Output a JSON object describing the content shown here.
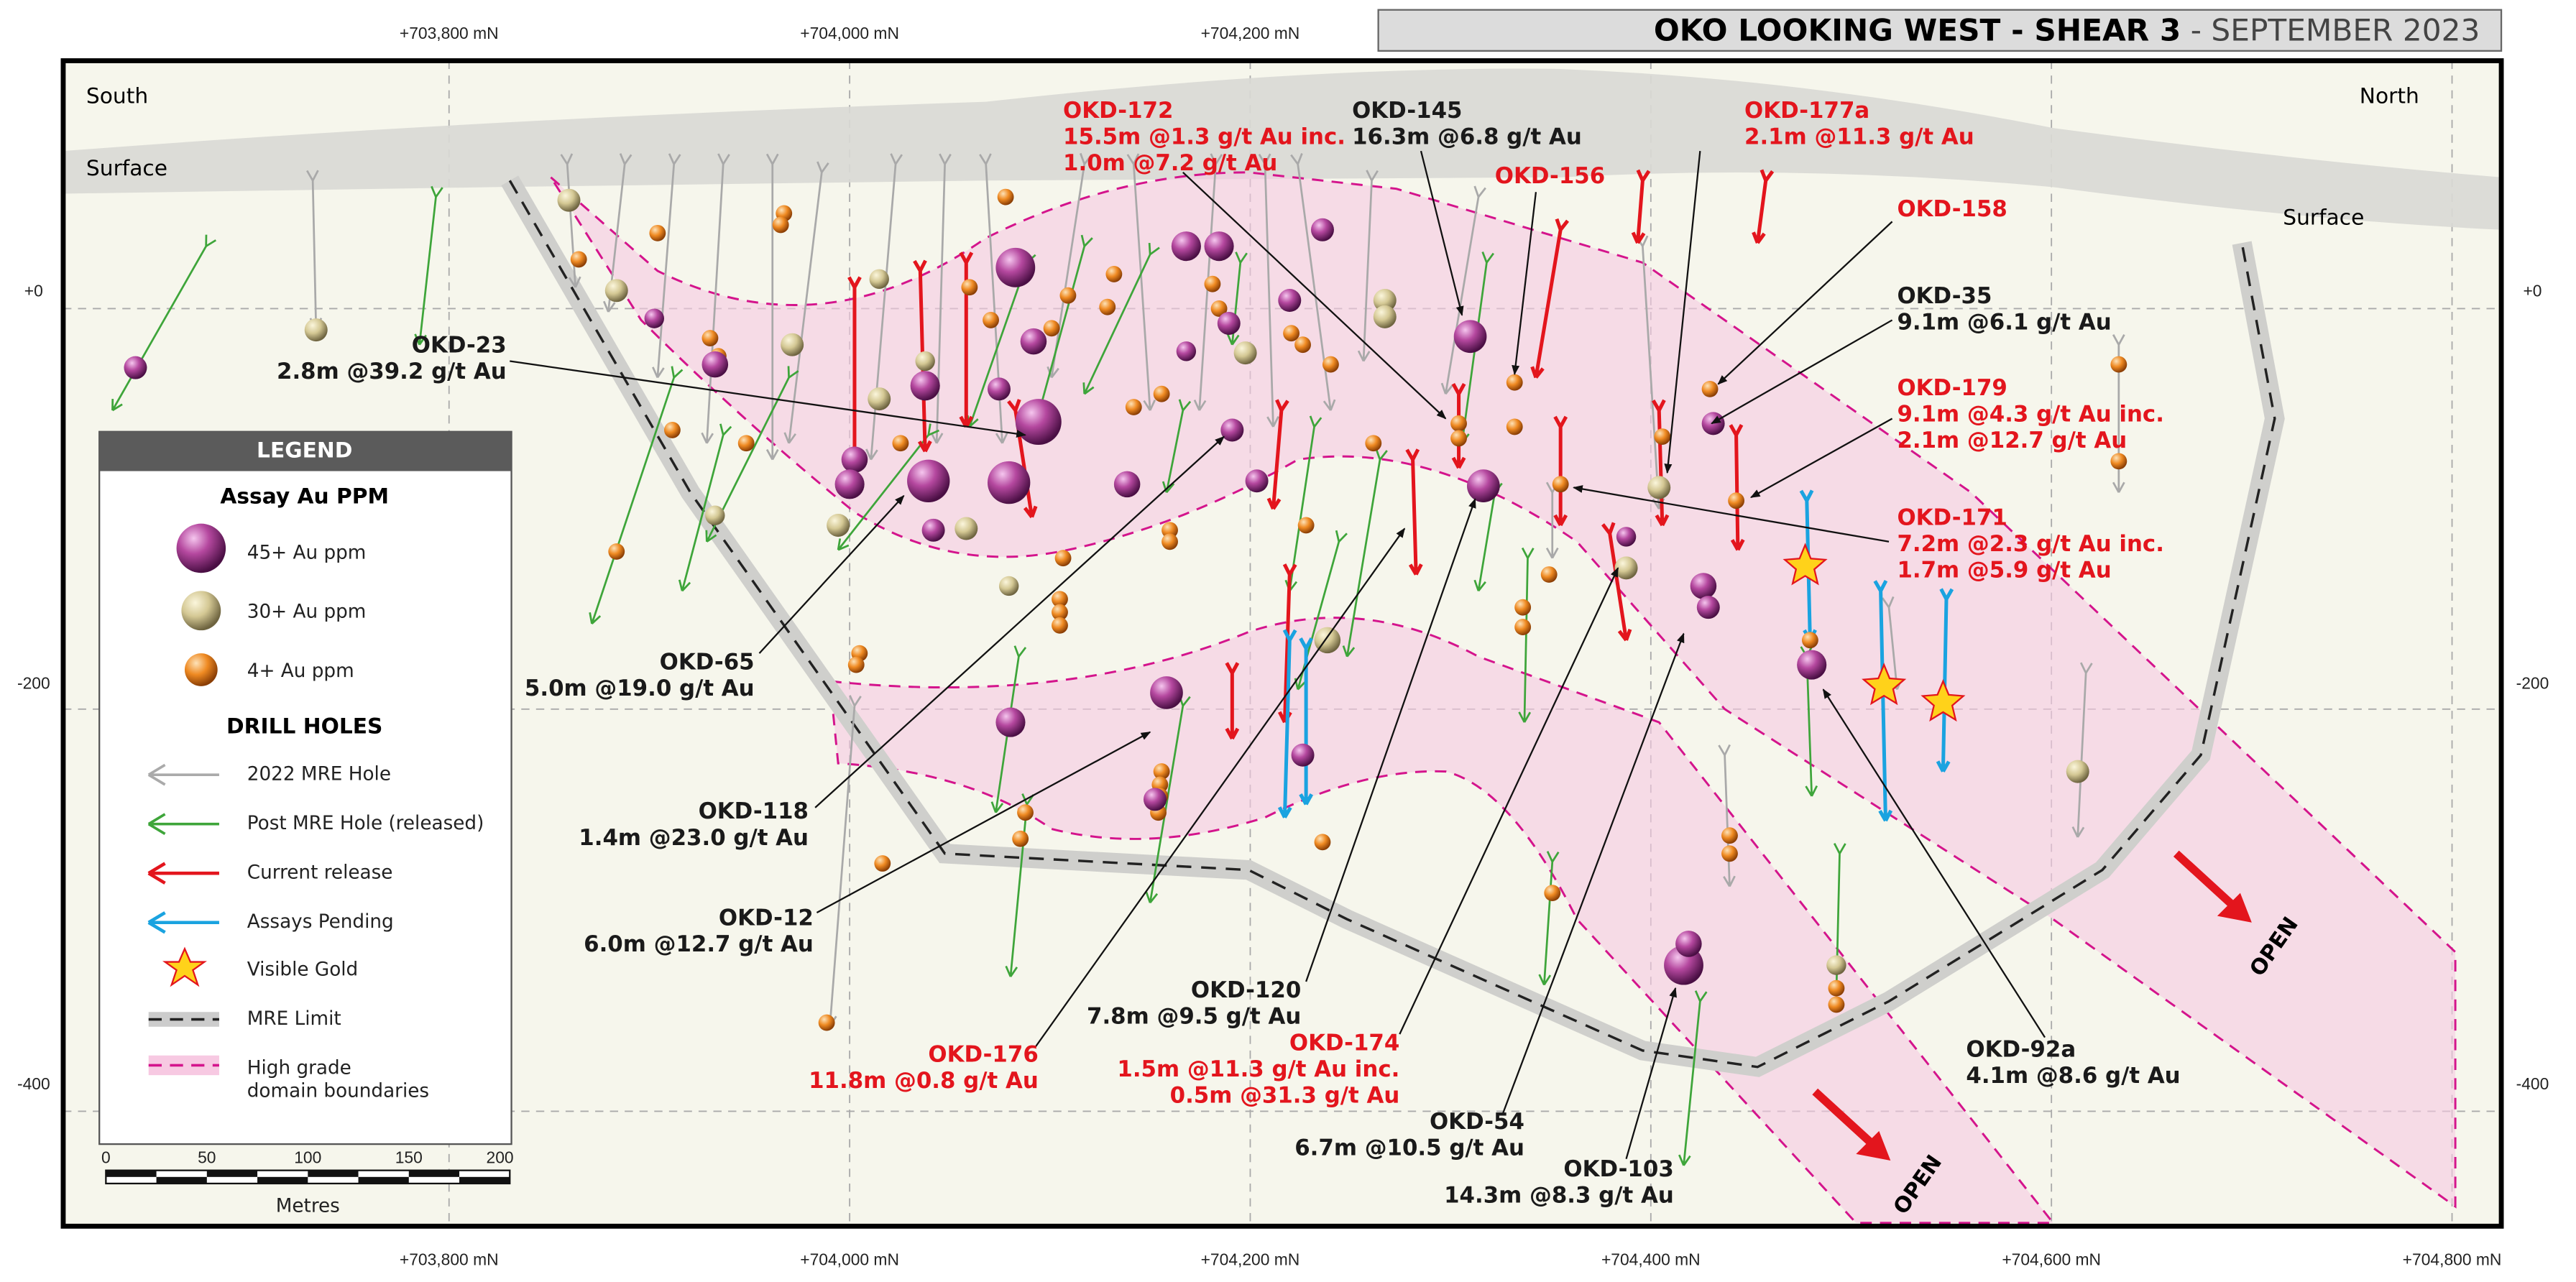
{
  "title": {
    "main": "OKO LOOKING WEST - SHEAR 3",
    "date": " - SEPTEMBER 2023"
  },
  "top_axis_labels": [
    "+703,800 mN",
    "+704,000 mN",
    "+704,200 mN"
  ],
  "bottom_axis_labels": [
    "+703,800 mN",
    "+704,000 mN",
    "+704,200 mN",
    "+704,400 mN",
    "+704,600 mN",
    "+704,800 mN"
  ],
  "elevation_labels": [
    "+0",
    "-200",
    "-400"
  ],
  "orientation": {
    "south": "South",
    "north": "North"
  },
  "surface_labels": [
    "Surface",
    "Surface"
  ],
  "open_labels": [
    "OPEN",
    "OPEN"
  ],
  "intercepts": [
    {
      "hole": "OKD-172",
      "lines": [
        "15.5m @1.3 g/t Au inc.",
        "1.0m @7.2 g/t Au"
      ],
      "color": "#e3151d"
    },
    {
      "hole": "OKD-145",
      "lines": [
        "16.3m @6.8 g/t Au"
      ],
      "color": "#1a1a1a"
    },
    {
      "hole": "OKD-156",
      "lines": [],
      "color": "#e3151d"
    },
    {
      "hole": "OKD-177a",
      "lines": [
        "2.1m @11.3 g/t Au"
      ],
      "color": "#e3151d"
    },
    {
      "hole": "OKD-158",
      "lines": [],
      "color": "#e3151d"
    },
    {
      "hole": "OKD-35",
      "lines": [
        "9.1m @6.1 g/t Au"
      ],
      "color": "#1a1a1a"
    },
    {
      "hole": "OKD-179",
      "lines": [
        "9.1m @4.3 g/t Au inc.",
        "2.1m @12.7 g/t Au"
      ],
      "color": "#e3151d"
    },
    {
      "hole": "OKD-171",
      "lines": [
        "7.2m @2.3 g/t Au inc.",
        "1.7m @5.9 g/t Au"
      ],
      "color": "#e3151d"
    },
    {
      "hole": "OKD-23",
      "lines": [
        "2.8m @39.2 g/t Au"
      ],
      "color": "#1a1a1a"
    },
    {
      "hole": "OKD-65",
      "lines": [
        "5.0m @19.0 g/t Au"
      ],
      "color": "#1a1a1a"
    },
    {
      "hole": "OKD-118",
      "lines": [
        "1.4m @23.0 g/t Au"
      ],
      "color": "#1a1a1a"
    },
    {
      "hole": "OKD-12",
      "lines": [
        "6.0m @12.7 g/t Au"
      ],
      "color": "#1a1a1a"
    },
    {
      "hole": "OKD-176",
      "lines": [
        "11.8m @0.8 g/t Au"
      ],
      "color": "#e3151d"
    },
    {
      "hole": "OKD-120",
      "lines": [
        "7.8m @9.5 g/t Au"
      ],
      "color": "#1a1a1a"
    },
    {
      "hole": "OKD-174",
      "lines": [
        "1.5m @11.3 g/t Au inc.",
        "0.5m @31.3 g/t Au"
      ],
      "color": "#e3151d"
    },
    {
      "hole": "OKD-54",
      "lines": [
        "6.7m @10.5 g/t Au"
      ],
      "color": "#1a1a1a"
    },
    {
      "hole": "OKD-103",
      "lines": [
        "14.3m @8.3 g/t Au"
      ],
      "color": "#1a1a1a"
    },
    {
      "hole": "OKD-92a",
      "lines": [
        "4.1m @8.6 g/t Au"
      ],
      "color": "#1a1a1a"
    }
  ],
  "legend": {
    "title": "LEGEND",
    "assay_heading": "Assay Au PPM",
    "assay_items": [
      "45+ Au ppm",
      "30+ Au ppm",
      "4+ Au ppm"
    ],
    "drill_heading": "DRILL HOLES",
    "drill_items": [
      "2022 MRE Hole",
      "Post MRE Hole (released)",
      "Current release",
      "Assays Pending",
      "Visible Gold",
      "MRE Limit"
    ],
    "domain_item": [
      "High grade",
      "domain boundaries"
    ],
    "scale_labels": [
      "0",
      "50",
      "100",
      "150",
      "200"
    ],
    "scale_unit": "Metres"
  }
}
